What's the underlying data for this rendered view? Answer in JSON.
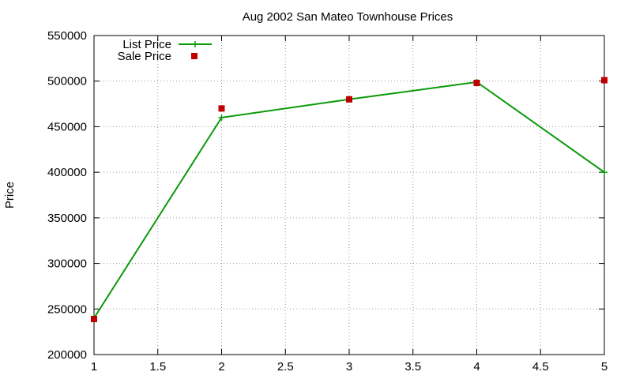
{
  "chart_data": {
    "type": "line",
    "title": "Aug 2002 San Mateo Townhouse Prices",
    "xlabel": "",
    "ylabel": "Price",
    "xlim": [
      1,
      5
    ],
    "ylim": [
      200000,
      550000
    ],
    "x_ticks": [
      "1",
      "1.5",
      "2",
      "2.5",
      "3",
      "3.5",
      "4",
      "4.5",
      "5"
    ],
    "y_ticks": [
      "200000",
      "250000",
      "300000",
      "350000",
      "400000",
      "450000",
      "500000",
      "550000"
    ],
    "grid": true,
    "legend_position": "top-left",
    "series": [
      {
        "name": "List Price",
        "style": "lines+plus-markers",
        "color": "#0a9a0a",
        "x": [
          1,
          2,
          3,
          4,
          5
        ],
        "values": [
          240000,
          460000,
          480000,
          499000,
          400000
        ]
      },
      {
        "name": "Sale Price",
        "style": "square-markers",
        "color": "#c00000",
        "x": [
          1,
          2,
          3,
          4,
          5
        ],
        "values": [
          239000,
          470000,
          480000,
          498000,
          501000
        ]
      }
    ]
  }
}
